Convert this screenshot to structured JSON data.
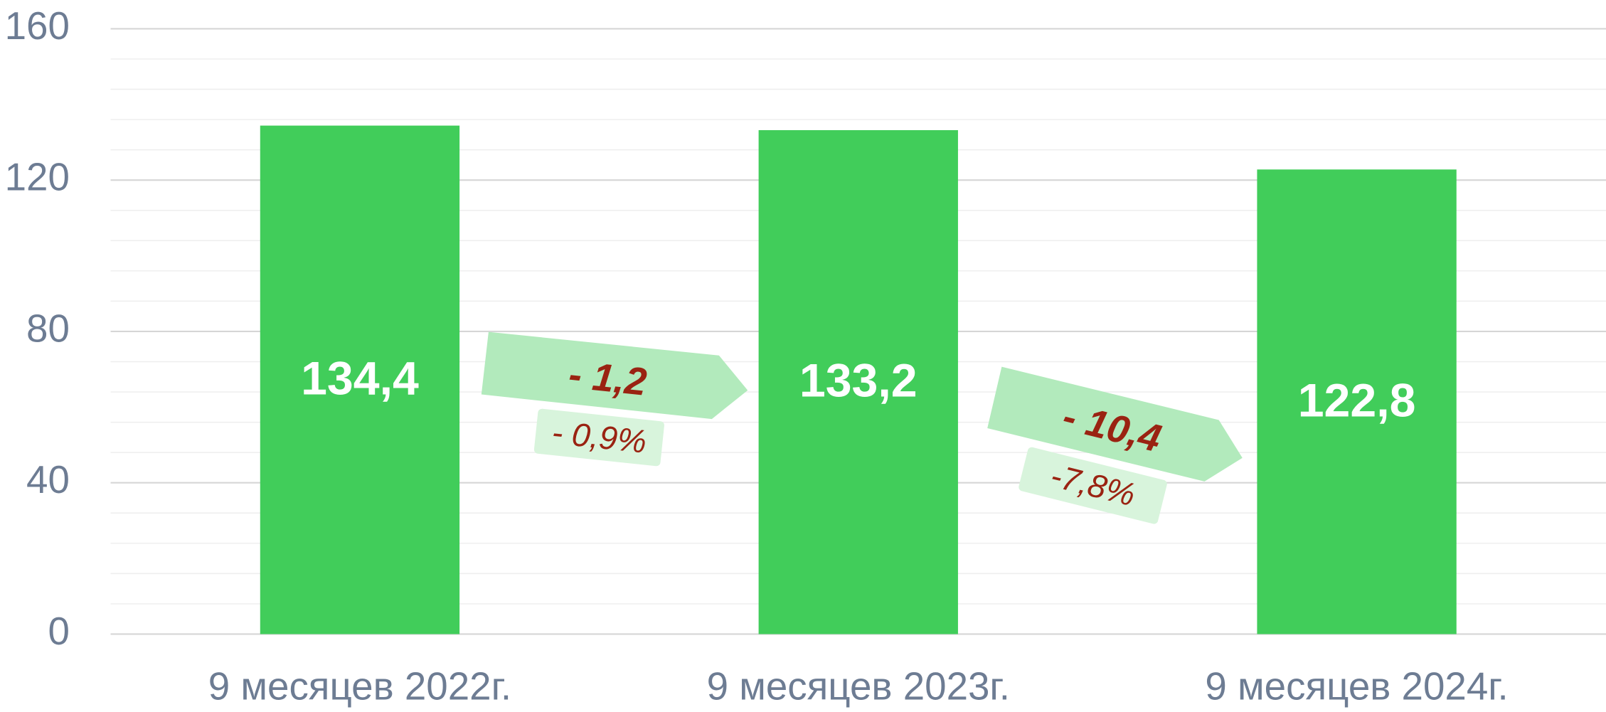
{
  "chart_data": {
    "type": "bar",
    "categories": [
      "9 месяцев 2022г.",
      "9 месяцев 2023г.",
      "9 месяцев 2024г."
    ],
    "values": [
      134.4,
      133.2,
      122.8
    ],
    "value_labels": [
      "134,4",
      "133,2",
      "122,8"
    ],
    "color": "#41cd5a",
    "ylim": [
      0,
      160
    ],
    "yticks": [
      0,
      40,
      80,
      120,
      160
    ],
    "minor_yticks": [
      8,
      16,
      24,
      32,
      48,
      56,
      64,
      72,
      88,
      96,
      104,
      112,
      128,
      136,
      144,
      152
    ],
    "grid": true,
    "annotations": [
      {
        "text": "- 1,2",
        "subtext": "- 0,9%"
      },
      {
        "text": "- 10,4",
        "subtext": "-7,8%"
      }
    ]
  }
}
